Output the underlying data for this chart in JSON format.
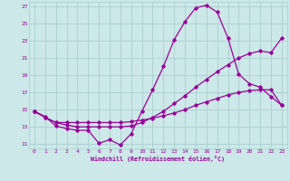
{
  "xlabel": "Windchill (Refroidissement éolien,°C)",
  "background_color": "#cce8e8",
  "grid_color": "#aacece",
  "line_color": "#990099",
  "xlim": [
    -0.5,
    23.5
  ],
  "ylim": [
    10.5,
    27.5
  ],
  "yticks": [
    11,
    13,
    15,
    17,
    19,
    21,
    23,
    25,
    27
  ],
  "xticks": [
    0,
    1,
    2,
    3,
    4,
    5,
    6,
    7,
    8,
    9,
    10,
    11,
    12,
    13,
    14,
    15,
    16,
    17,
    18,
    19,
    20,
    21,
    22,
    23
  ],
  "series": [
    {
      "x": [
        0,
        1,
        2,
        3,
        4,
        5,
        6,
        7,
        8,
        9,
        10,
        11,
        12,
        13,
        14,
        15,
        16,
        17,
        18,
        19,
        20,
        21,
        22,
        23
      ],
      "y": [
        14.8,
        14.2,
        13.1,
        12.8,
        12.6,
        12.6,
        11.1,
        11.5,
        10.9,
        12.2,
        14.8,
        17.3,
        20.0,
        23.1,
        25.2,
        26.8,
        27.1,
        26.3,
        23.3,
        19.1,
        18.0,
        17.6,
        16.5,
        15.5
      ]
    },
    {
      "x": [
        0,
        1,
        2,
        3,
        4,
        5,
        6,
        7,
        8,
        9,
        10,
        11,
        12,
        13,
        14,
        15,
        16,
        17,
        18,
        19,
        20,
        21,
        22,
        23
      ],
      "y": [
        14.8,
        14.1,
        13.5,
        13.2,
        13.0,
        13.0,
        13.0,
        13.0,
        13.0,
        13.1,
        13.5,
        14.1,
        14.8,
        15.7,
        16.6,
        17.6,
        18.5,
        19.4,
        20.2,
        21.0,
        21.5,
        21.8,
        21.6,
        23.3
      ]
    },
    {
      "x": [
        0,
        1,
        2,
        3,
        4,
        5,
        6,
        7,
        8,
        9,
        10,
        11,
        12,
        13,
        14,
        15,
        16,
        17,
        18,
        19,
        20,
        21,
        22,
        23
      ],
      "y": [
        14.8,
        14.1,
        13.5,
        13.5,
        13.5,
        13.5,
        13.5,
        13.5,
        13.5,
        13.6,
        13.8,
        14.0,
        14.3,
        14.6,
        15.0,
        15.5,
        15.9,
        16.3,
        16.7,
        17.0,
        17.2,
        17.3,
        17.3,
        15.5
      ]
    }
  ]
}
